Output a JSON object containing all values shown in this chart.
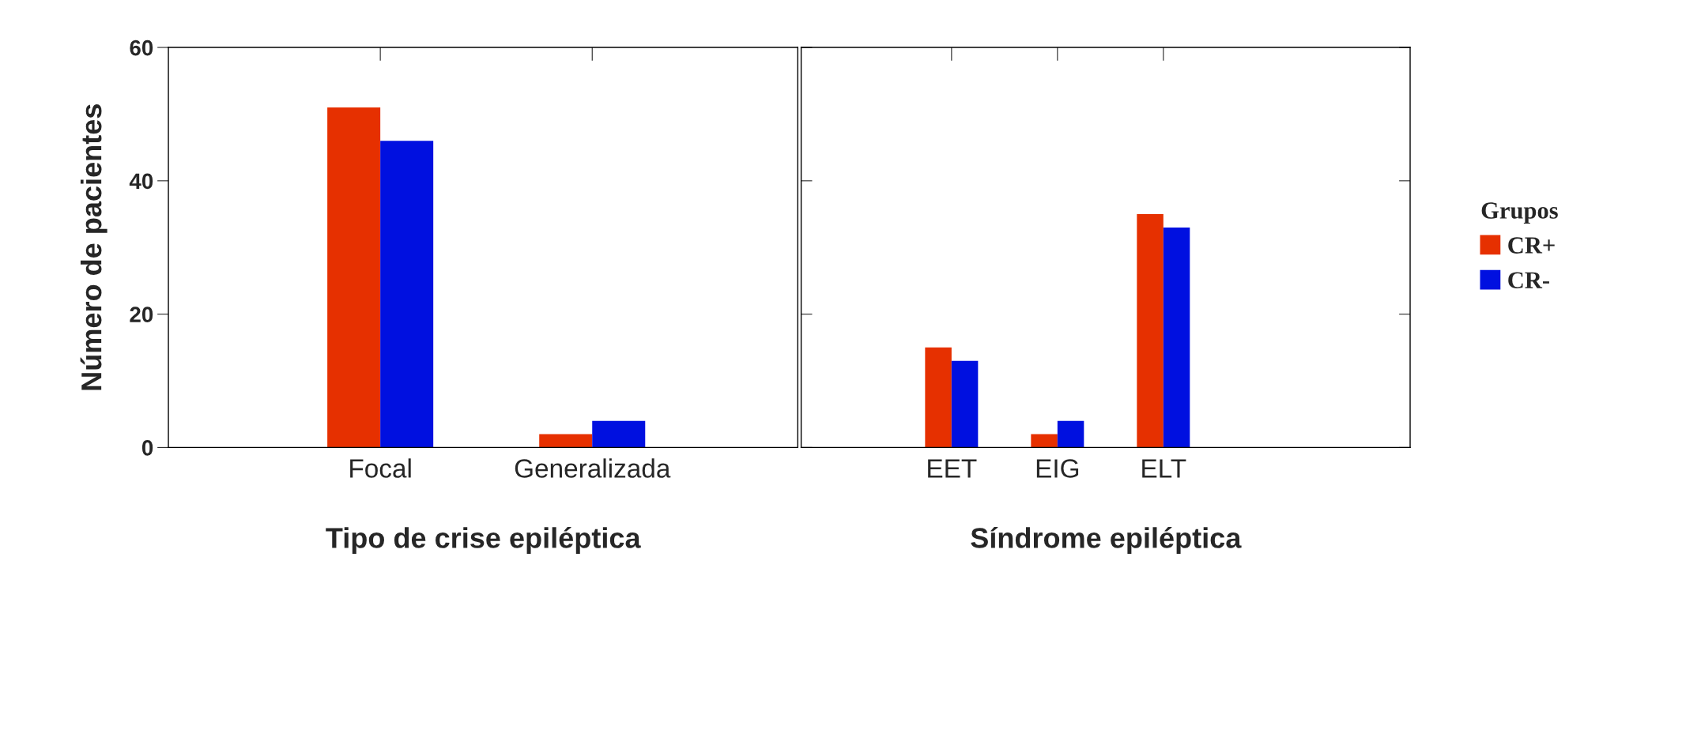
{
  "chart_data": [
    {
      "type": "bar",
      "xlabel": "Tipo de crise epiléptica",
      "ylabel": "Número de pacientes",
      "categories": [
        "Focal",
        "Generalizada"
      ],
      "series": [
        {
          "color": "#e63000",
          "values": [
            51,
            2
          ]
        },
        {
          "color": "#0010e0",
          "values": [
            46,
            4
          ]
        }
      ],
      "ylim": [
        0,
        60
      ],
      "yticks": [
        0,
        20,
        40,
        60
      ],
      "grid": false
    },
    {
      "type": "bar",
      "xlabel": "Síndrome epiléptica",
      "categories": [
        "EET",
        "EIG",
        "ELT"
      ],
      "series": [
        {
          "name": "CR+",
          "color": "#e63000",
          "values": [
            15,
            2,
            35
          ]
        },
        {
          "name": "CR-",
          "color": "#0010e0",
          "values": [
            13,
            4,
            33
          ]
        }
      ],
      "ylim": [
        0,
        60
      ],
      "yticks": [
        0,
        20,
        40,
        60
      ],
      "tick_labels": "x",
      "grid": false,
      "legend": "right",
      "legend_title": "Grupos"
    }
  ]
}
